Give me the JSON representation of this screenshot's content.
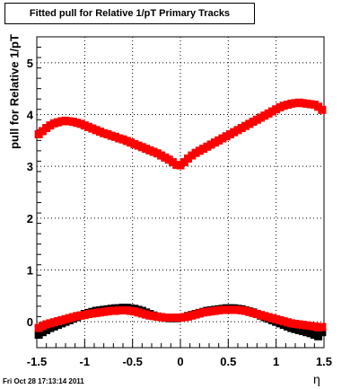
{
  "chart_data": {
    "type": "scatter",
    "title": "Fitted pull for Relative 1/pT  Primary Tracks",
    "xlabel": "η",
    "ylabel": "pull for Relative 1/pT",
    "xlim": [
      -1.5,
      1.5
    ],
    "ylim": [
      -0.5,
      5.5
    ],
    "xticks": [
      "-1.5",
      "-1",
      "-0.5",
      "0",
      "0.5",
      "1",
      "1.5"
    ],
    "xtick_values": [
      -1.5,
      -1,
      -0.5,
      0,
      0.5,
      1,
      1.5
    ],
    "yticks": [
      "0",
      "1",
      "2",
      "3",
      "4",
      "5"
    ],
    "ytick_values": [
      0,
      1,
      2,
      3,
      4,
      5
    ],
    "grid": true,
    "colors": {
      "upper_series": "#ff0000",
      "lower_red_series": "#ff0000",
      "lower_black_series": "#000000"
    },
    "series": [
      {
        "marker": "square",
        "color": "#ff0000",
        "x": [
          -1.48,
          -1.44,
          -1.4,
          -1.36,
          -1.32,
          -1.28,
          -1.24,
          -1.2,
          -1.16,
          -1.12,
          -1.08,
          -1.04,
          -1.0,
          -0.96,
          -0.92,
          -0.88,
          -0.84,
          -0.8,
          -0.76,
          -0.72,
          -0.68,
          -0.64,
          -0.6,
          -0.56,
          -0.52,
          -0.48,
          -0.44,
          -0.4,
          -0.36,
          -0.32,
          -0.28,
          -0.24,
          -0.2,
          -0.16,
          -0.12,
          -0.08,
          -0.04,
          0.0,
          0.04,
          0.08,
          0.12,
          0.16,
          0.2,
          0.24,
          0.28,
          0.32,
          0.36,
          0.4,
          0.44,
          0.48,
          0.52,
          0.56,
          0.6,
          0.64,
          0.68,
          0.72,
          0.76,
          0.8,
          0.84,
          0.88,
          0.92,
          0.96,
          1.0,
          1.04,
          1.08,
          1.12,
          1.16,
          1.2,
          1.24,
          1.28,
          1.32,
          1.36,
          1.4,
          1.44,
          1.48
        ],
        "y": [
          3.62,
          3.68,
          3.74,
          3.79,
          3.83,
          3.85,
          3.87,
          3.88,
          3.87,
          3.86,
          3.84,
          3.82,
          3.79,
          3.76,
          3.73,
          3.7,
          3.67,
          3.64,
          3.62,
          3.59,
          3.57,
          3.54,
          3.52,
          3.49,
          3.46,
          3.43,
          3.4,
          3.37,
          3.34,
          3.31,
          3.28,
          3.25,
          3.21,
          3.17,
          3.13,
          3.08,
          3.03,
          3.02,
          3.08,
          3.15,
          3.21,
          3.26,
          3.3,
          3.34,
          3.38,
          3.42,
          3.46,
          3.5,
          3.54,
          3.58,
          3.62,
          3.66,
          3.7,
          3.74,
          3.78,
          3.82,
          3.86,
          3.9,
          3.94,
          3.98,
          4.02,
          4.06,
          4.1,
          4.14,
          4.17,
          4.19,
          4.21,
          4.22,
          4.23,
          4.22,
          4.21,
          4.2,
          4.19,
          4.15,
          4.09
        ]
      },
      {
        "marker": "square",
        "color": "#000000",
        "x": [
          -1.48,
          -1.44,
          -1.4,
          -1.36,
          -1.32,
          -1.28,
          -1.24,
          -1.2,
          -1.16,
          -1.12,
          -1.08,
          -1.04,
          -1.0,
          -0.96,
          -0.92,
          -0.88,
          -0.84,
          -0.8,
          -0.76,
          -0.72,
          -0.68,
          -0.64,
          -0.6,
          -0.56,
          -0.52,
          -0.48,
          -0.44,
          -0.4,
          -0.36,
          -0.32,
          -0.28,
          -0.24,
          -0.2,
          -0.16,
          -0.12,
          -0.08,
          -0.04,
          0.0,
          0.04,
          0.08,
          0.12,
          0.16,
          0.2,
          0.24,
          0.28,
          0.32,
          0.36,
          0.4,
          0.44,
          0.48,
          0.52,
          0.56,
          0.6,
          0.64,
          0.68,
          0.72,
          0.76,
          0.8,
          0.84,
          0.88,
          0.92,
          0.96,
          1.0,
          1.04,
          1.08,
          1.12,
          1.16,
          1.2,
          1.24,
          1.28,
          1.32,
          1.36,
          1.4,
          1.44,
          1.48
        ],
        "y": [
          -0.25,
          -0.2,
          -0.16,
          -0.12,
          -0.09,
          -0.06,
          -0.03,
          0.0,
          0.03,
          0.06,
          0.09,
          0.12,
          0.15,
          0.17,
          0.19,
          0.21,
          0.22,
          0.23,
          0.24,
          0.25,
          0.26,
          0.26,
          0.27,
          0.27,
          0.26,
          0.25,
          0.23,
          0.21,
          0.18,
          0.15,
          0.12,
          0.1,
          0.09,
          0.08,
          0.07,
          0.07,
          0.07,
          0.08,
          0.09,
          0.11,
          0.13,
          0.15,
          0.17,
          0.19,
          0.21,
          0.22,
          0.23,
          0.24,
          0.25,
          0.26,
          0.26,
          0.26,
          0.25,
          0.24,
          0.22,
          0.2,
          0.18,
          0.15,
          0.12,
          0.09,
          0.06,
          0.03,
          0.0,
          -0.03,
          -0.06,
          -0.09,
          -0.12,
          -0.14,
          -0.16,
          -0.18,
          -0.2,
          -0.22,
          -0.25,
          -0.28,
          -0.2
        ]
      },
      {
        "marker": "square",
        "color": "#ff0000",
        "x": [
          -1.48,
          -1.44,
          -1.4,
          -1.36,
          -1.32,
          -1.28,
          -1.24,
          -1.2,
          -1.16,
          -1.12,
          -1.08,
          -1.04,
          -1.0,
          -0.96,
          -0.92,
          -0.88,
          -0.84,
          -0.8,
          -0.76,
          -0.72,
          -0.68,
          -0.64,
          -0.6,
          -0.56,
          -0.52,
          -0.48,
          -0.44,
          -0.4,
          -0.36,
          -0.32,
          -0.28,
          -0.24,
          -0.2,
          -0.16,
          -0.12,
          -0.08,
          -0.04,
          0.0,
          0.04,
          0.08,
          0.12,
          0.16,
          0.2,
          0.24,
          0.28,
          0.32,
          0.36,
          0.4,
          0.44,
          0.48,
          0.52,
          0.56,
          0.6,
          0.64,
          0.68,
          0.72,
          0.76,
          0.8,
          0.84,
          0.88,
          0.92,
          0.96,
          1.0,
          1.04,
          1.08,
          1.12,
          1.16,
          1.2,
          1.24,
          1.28,
          1.32,
          1.36,
          1.4,
          1.44,
          1.48
        ],
        "y": [
          -0.12,
          -0.08,
          -0.05,
          -0.03,
          -0.01,
          0.01,
          0.03,
          0.05,
          0.07,
          0.09,
          0.11,
          0.12,
          0.13,
          0.15,
          0.16,
          0.17,
          0.18,
          0.19,
          0.2,
          0.21,
          0.21,
          0.22,
          0.22,
          0.22,
          0.21,
          0.2,
          0.18,
          0.16,
          0.14,
          0.12,
          0.11,
          0.1,
          0.09,
          0.08,
          0.08,
          0.08,
          0.08,
          0.08,
          0.09,
          0.1,
          0.12,
          0.14,
          0.16,
          0.18,
          0.19,
          0.2,
          0.21,
          0.22,
          0.23,
          0.23,
          0.23,
          0.23,
          0.23,
          0.22,
          0.21,
          0.19,
          0.17,
          0.15,
          0.13,
          0.11,
          0.09,
          0.07,
          0.05,
          0.03,
          0.01,
          -0.01,
          -0.03,
          -0.04,
          -0.05,
          -0.06,
          -0.07,
          -0.08,
          -0.09,
          -0.11,
          -0.1
        ]
      }
    ]
  },
  "footer": {
    "timestamp": "Fri Oct 28 17:13:14 2011"
  }
}
